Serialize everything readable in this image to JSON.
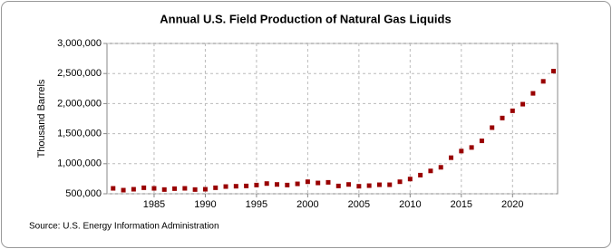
{
  "chart_data": {
    "type": "scatter",
    "title": "Annual U.S. Field Production of Natural Gas Liquids",
    "y_label": "Thousand Barrels",
    "source": "Source: U.S. Energy Information Administration",
    "x": [
      1981,
      1982,
      1983,
      1984,
      1985,
      1986,
      1987,
      1988,
      1989,
      1990,
      1991,
      1992,
      1993,
      1994,
      1995,
      1996,
      1997,
      1998,
      1999,
      2000,
      2001,
      2002,
      2003,
      2004,
      2005,
      2006,
      2007,
      2008,
      2009,
      2010,
      2011,
      2012,
      2013,
      2014,
      2015,
      2016,
      2017,
      2018,
      2019,
      2020,
      2021,
      2022,
      2023,
      2024
    ],
    "series": [
      {
        "name": "Annual U.S. Field Production of Natural Gas Liquids",
        "color": "#990000",
        "values": [
          590000,
          560000,
          575000,
          600000,
          590000,
          570000,
          585000,
          590000,
          570000,
          575000,
          600000,
          620000,
          625000,
          630000,
          645000,
          670000,
          655000,
          645000,
          665000,
          700000,
          680000,
          690000,
          630000,
          655000,
          625000,
          635000,
          650000,
          650000,
          700000,
          745000,
          810000,
          880000,
          940000,
          1100000,
          1210000,
          1270000,
          1380000,
          1600000,
          1760000,
          1880000,
          1990000,
          2170000,
          2370000,
          2540000
        ]
      }
    ],
    "xlim": [
      1980.4,
      2024.4
    ],
    "xticks": [
      1985,
      1990,
      1995,
      2000,
      2005,
      2010,
      2015,
      2020
    ],
    "ylim": [
      500000,
      3000000
    ],
    "yticks": [
      {
        "value": 500000,
        "label": "500,000"
      },
      {
        "value": 1000000,
        "label": "1,000,000"
      },
      {
        "value": 1500000,
        "label": "1,500,000"
      },
      {
        "value": 2000000,
        "label": "2,000,000"
      },
      {
        "value": 2500000,
        "label": "2,500,000"
      },
      {
        "value": 3000000,
        "label": "3,000,000"
      }
    ],
    "grid": true
  }
}
